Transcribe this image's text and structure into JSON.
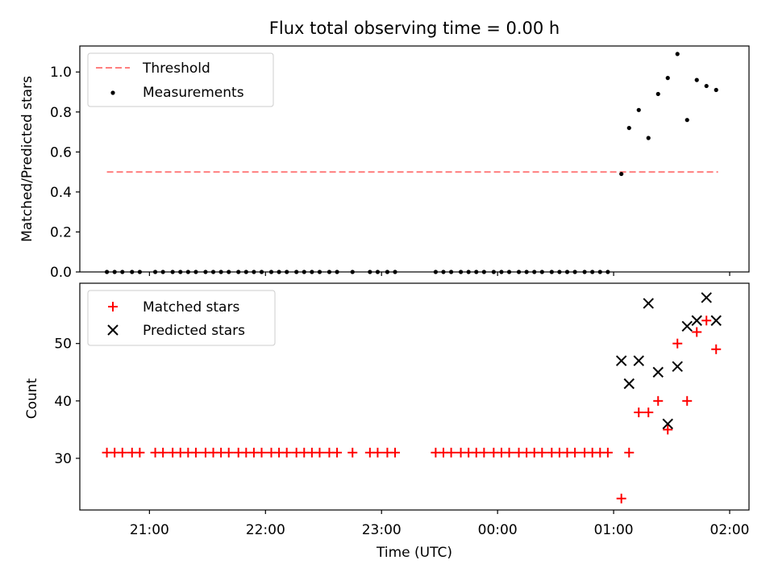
{
  "chart_data": [
    {
      "type": "scatter",
      "title": "Flux total observing time = 0.00 h",
      "ylabel": "Matched/Predicted stars",
      "xlabel": "",
      "x_ticks": [
        "21:00",
        "22:00",
        "23:00",
        "00:00",
        "01:00",
        "02:00"
      ],
      "y_ticks": [
        "0.0",
        "0.2",
        "0.4",
        "0.6",
        "0.8",
        "1.0"
      ],
      "ylim": [
        0.0,
        1.13
      ],
      "xlim": [
        "20:24",
        "02:10"
      ],
      "grid": false,
      "legend_position": "top-left",
      "threshold": {
        "name": "Threshold",
        "value": 0.5,
        "x_start": "20:38",
        "x_end": "01:54",
        "color": "#ff7f7f"
      },
      "series": [
        {
          "name": "Measurements",
          "color": "#000000",
          "x": [
            "20:38",
            "20:42",
            "20:46",
            "20:51",
            "20:55",
            "21:03",
            "21:07",
            "21:12",
            "21:16",
            "21:20",
            "21:24",
            "21:29",
            "21:33",
            "21:37",
            "21:41",
            "21:46",
            "21:50",
            "21:54",
            "21:58",
            "22:03",
            "22:07",
            "22:11",
            "22:16",
            "22:20",
            "22:24",
            "22:28",
            "22:33",
            "22:37",
            "22:45",
            "22:54",
            "22:58",
            "23:03",
            "23:07",
            "23:28",
            "23:32",
            "23:36",
            "23:41",
            "23:45",
            "23:49",
            "23:53",
            "23:58",
            "00:02",
            "00:06",
            "00:11",
            "00:15",
            "00:19",
            "00:23",
            "00:28",
            "00:32",
            "00:36",
            "00:40",
            "00:45",
            "00:49",
            "00:53",
            "00:57",
            "01:04",
            "01:08",
            "01:13",
            "01:18",
            "01:23",
            "01:28",
            "01:33",
            "01:38",
            "01:43",
            "01:48",
            "01:53"
          ],
          "y": [
            0,
            0,
            0,
            0,
            0,
            0,
            0,
            0,
            0,
            0,
            0,
            0,
            0,
            0,
            0,
            0,
            0,
            0,
            0,
            0,
            0,
            0,
            0,
            0,
            0,
            0,
            0,
            0,
            0,
            0,
            0,
            0,
            0,
            0,
            0,
            0,
            0,
            0,
            0,
            0,
            0,
            0,
            0,
            0,
            0,
            0,
            0,
            0,
            0,
            0,
            0,
            0,
            0,
            0,
            0,
            0.49,
            0.72,
            0.81,
            0.67,
            0.89,
            0.97,
            1.09,
            0.76,
            0.96,
            0.93,
            0.91
          ]
        }
      ]
    },
    {
      "type": "scatter",
      "title": "",
      "ylabel": "Count",
      "xlabel": "Time (UTC)",
      "x_ticks": [
        "21:00",
        "22:00",
        "23:00",
        "00:00",
        "01:00",
        "02:00"
      ],
      "y_ticks": [
        "30",
        "40",
        "50"
      ],
      "ylim": [
        21,
        60.5
      ],
      "xlim": [
        "20:24",
        "02:10"
      ],
      "grid": false,
      "legend_position": "top-left",
      "series": [
        {
          "name": "Matched stars",
          "marker": "plus",
          "color": "#ff0000",
          "x": [
            "20:38",
            "20:42",
            "20:46",
            "20:51",
            "20:55",
            "21:03",
            "21:07",
            "21:12",
            "21:16",
            "21:20",
            "21:24",
            "21:29",
            "21:33",
            "21:37",
            "21:41",
            "21:46",
            "21:50",
            "21:54",
            "21:58",
            "22:03",
            "22:07",
            "22:11",
            "22:16",
            "22:20",
            "22:24",
            "22:28",
            "22:33",
            "22:37",
            "22:45",
            "22:54",
            "22:58",
            "23:03",
            "23:07",
            "23:28",
            "23:32",
            "23:36",
            "23:41",
            "23:45",
            "23:49",
            "23:53",
            "23:58",
            "00:02",
            "00:06",
            "00:11",
            "00:15",
            "00:19",
            "00:23",
            "00:28",
            "00:32",
            "00:36",
            "00:40",
            "00:45",
            "00:49",
            "00:53",
            "00:57",
            "01:04",
            "01:08",
            "01:13",
            "01:18",
            "01:23",
            "01:28",
            "01:33",
            "01:38",
            "01:43",
            "01:48",
            "01:53"
          ],
          "y": [
            31,
            31,
            31,
            31,
            31,
            31,
            31,
            31,
            31,
            31,
            31,
            31,
            31,
            31,
            31,
            31,
            31,
            31,
            31,
            31,
            31,
            31,
            31,
            31,
            31,
            31,
            31,
            31,
            31,
            31,
            31,
            31,
            31,
            31,
            31,
            31,
            31,
            31,
            31,
            31,
            31,
            31,
            31,
            31,
            31,
            31,
            31,
            31,
            31,
            31,
            31,
            31,
            31,
            31,
            31,
            23,
            31,
            38,
            38,
            40,
            35,
            50,
            40,
            52,
            54,
            49
          ]
        },
        {
          "name": "Predicted stars",
          "marker": "x",
          "color": "#000000",
          "x": [
            "01:04",
            "01:08",
            "01:13",
            "01:18",
            "01:23",
            "01:28",
            "01:33",
            "01:38",
            "01:43",
            "01:48",
            "01:53"
          ],
          "y": [
            47,
            43,
            47,
            57,
            45,
            36,
            46,
            53,
            54,
            58,
            54
          ]
        }
      ]
    }
  ]
}
